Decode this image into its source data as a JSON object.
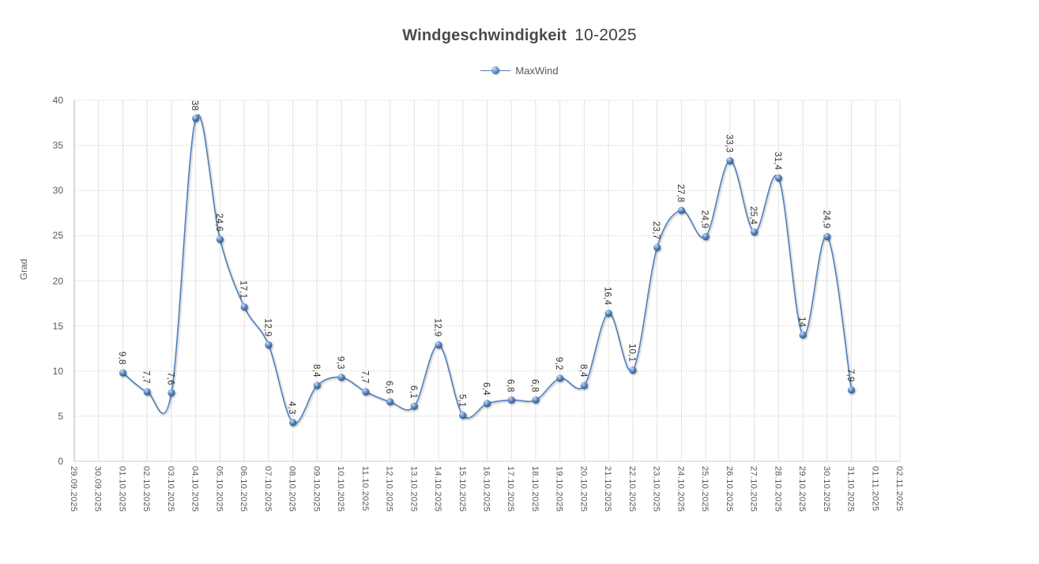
{
  "title": {
    "main": "Windgeschwindigkeit",
    "suffix": "10-2025"
  },
  "legend": {
    "series_label": "MaxWind"
  },
  "colors": {
    "line": "#4f81bd",
    "marker_dark": "#2f5585",
    "marker_mid": "#3f6daa",
    "marker_light": "#cfe0f2",
    "grid": "#d9d9d9",
    "axis": "#bfbfbf",
    "tick_text": "#595959",
    "data_label_text": "#333333",
    "title_text": "#4a4a4a"
  },
  "chart_data": {
    "type": "line",
    "title": "Windgeschwindigkeit 10-2025",
    "xlabel": "",
    "ylabel": "Grad",
    "ylim": [
      0,
      40
    ],
    "yticks": [
      0,
      5,
      10,
      15,
      20,
      25,
      30,
      35,
      40
    ],
    "grid": true,
    "smooth": true,
    "legend_position": "top",
    "categories": [
      "29.09.2025",
      "30.09.2025",
      "01.10.2025",
      "02.10.2025",
      "03.10.2025",
      "04.10.2025",
      "05.10.2025",
      "06.10.2025",
      "07.10.2025",
      "08.10.2025",
      "09.10.2025",
      "10.10.2025",
      "11.10.2025",
      "12.10.2025",
      "13.10.2025",
      "14.10.2025",
      "15.10.2025",
      "16.10.2025",
      "17.10.2025",
      "18.10.2025",
      "19.10.2025",
      "20.10.2025",
      "21.10.2025",
      "22.10.2025",
      "23.10.2025",
      "24.10.2025",
      "25.10.2025",
      "26.10.2025",
      "27.10.2025",
      "28.10.2025",
      "29.10.2025",
      "30.10.2025",
      "31.10.2025",
      "01.11.2025",
      "02.11.2025"
    ],
    "series": [
      {
        "name": "MaxWind",
        "start_index": 2,
        "values": [
          9.8,
          7.7,
          7.6,
          38,
          24.6,
          17.1,
          12.9,
          4.3,
          8.4,
          9.3,
          7.7,
          6.6,
          6.1,
          12.9,
          5.1,
          6.4,
          6.8,
          6.8,
          9.2,
          8.4,
          16.4,
          10.1,
          23.7,
          27.8,
          24.9,
          33.3,
          25.4,
          31.4,
          14,
          24.9,
          7.9
        ],
        "point_labels": [
          "9,8",
          "7,7",
          "7,6",
          "38",
          "24,6",
          "17,1",
          "12,9",
          "4,3",
          "8,4",
          "9,3",
          "7,7",
          "6,6",
          "6,1",
          "12,9",
          "5,1",
          "6,4",
          "6,8",
          "6,8",
          "9,2",
          "8,4",
          "16,4",
          "10,1",
          "23,7",
          "27,8",
          "24,9",
          "33,3",
          "25,4",
          "31,4",
          "14",
          "24,9",
          "7,9"
        ]
      }
    ]
  }
}
